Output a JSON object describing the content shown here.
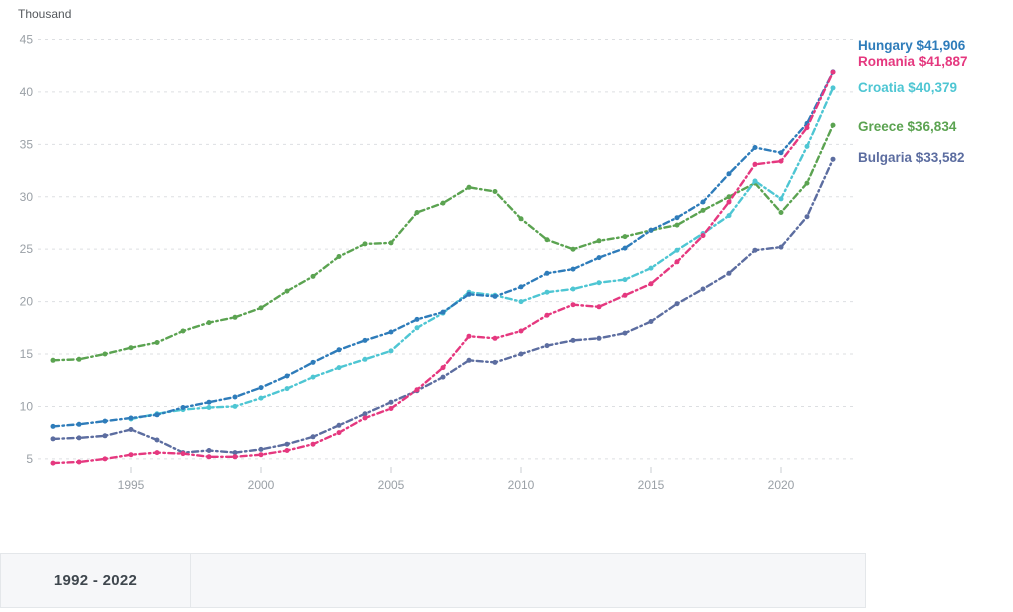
{
  "unit_label": "Thousand",
  "time_range": {
    "display": "1992 - 2022"
  },
  "chart_data": {
    "type": "line",
    "title": "",
    "ylabel": "Thousand",
    "xlabel": "",
    "x_start": 1992,
    "x_end": 2022,
    "x_ticks": [
      1995,
      2000,
      2005,
      2010,
      2015,
      2020
    ],
    "y_ticks": [
      5,
      10,
      15,
      20,
      25,
      30,
      35,
      40,
      45
    ],
    "ylim": [
      3,
      46
    ],
    "grid": "dashed-horizontal",
    "legend_position": "right",
    "line_style": "dash-dot-with-markers",
    "series": [
      {
        "name": "Hungary",
        "color": "#2e7cba",
        "final_value_label": "$41,906",
        "legend_label": "Hungary $41,906",
        "values": [
          8.1,
          8.3,
          8.6,
          8.9,
          9.2,
          9.9,
          10.4,
          10.9,
          11.8,
          12.9,
          14.2,
          15.4,
          16.3,
          17.1,
          18.3,
          19.0,
          20.7,
          20.5,
          21.4,
          22.7,
          23.1,
          24.2,
          25.1,
          26.8,
          28.0,
          29.5,
          32.2,
          34.7,
          34.2,
          37.0,
          41.906
        ]
      },
      {
        "name": "Romania",
        "color": "#e5387f",
        "final_value_label": "$41,887",
        "legend_label": "Romania $41,887",
        "values": [
          4.6,
          4.7,
          5.0,
          5.4,
          5.6,
          5.5,
          5.2,
          5.2,
          5.4,
          5.8,
          6.4,
          7.5,
          8.9,
          9.8,
          11.6,
          13.7,
          16.7,
          16.5,
          17.2,
          18.7,
          19.7,
          19.5,
          20.6,
          21.7,
          23.8,
          26.3,
          29.5,
          33.1,
          33.4,
          36.6,
          41.887
        ]
      },
      {
        "name": "Croatia",
        "color": "#4ec6d3",
        "final_value_label": "$40,379",
        "legend_label": "Croatia $40,379",
        "values": [
          null,
          null,
          null,
          8.8,
          9.3,
          9.7,
          9.9,
          10.0,
          10.8,
          11.7,
          12.8,
          13.7,
          14.5,
          15.3,
          17.5,
          18.9,
          20.9,
          20.6,
          20.0,
          20.9,
          21.2,
          21.8,
          22.1,
          23.2,
          24.9,
          26.5,
          28.2,
          31.5,
          29.8,
          34.8,
          40.379
        ]
      },
      {
        "name": "Greece",
        "color": "#5ba351",
        "final_value_label": "$36,834",
        "legend_label": "Greece $36,834",
        "values": [
          14.4,
          14.5,
          15.0,
          15.6,
          16.1,
          17.2,
          18.0,
          18.5,
          19.4,
          21.0,
          22.4,
          24.3,
          25.5,
          25.6,
          28.5,
          29.4,
          30.9,
          30.5,
          27.9,
          25.9,
          25.0,
          25.8,
          26.2,
          26.8,
          27.3,
          28.7,
          30.0,
          31.3,
          28.5,
          31.3,
          36.834
        ]
      },
      {
        "name": "Bulgaria",
        "color": "#5c6da0",
        "final_value_label": "$33,582",
        "legend_label": "Bulgaria $33,582",
        "values": [
          6.9,
          7.0,
          7.2,
          7.8,
          6.8,
          5.6,
          5.8,
          5.6,
          5.9,
          6.4,
          7.1,
          8.2,
          9.3,
          10.4,
          11.5,
          12.8,
          14.4,
          14.2,
          15.0,
          15.8,
          16.3,
          16.5,
          17.0,
          18.1,
          19.8,
          21.2,
          22.7,
          24.9,
          25.2,
          28.1,
          33.582
        ]
      }
    ]
  }
}
